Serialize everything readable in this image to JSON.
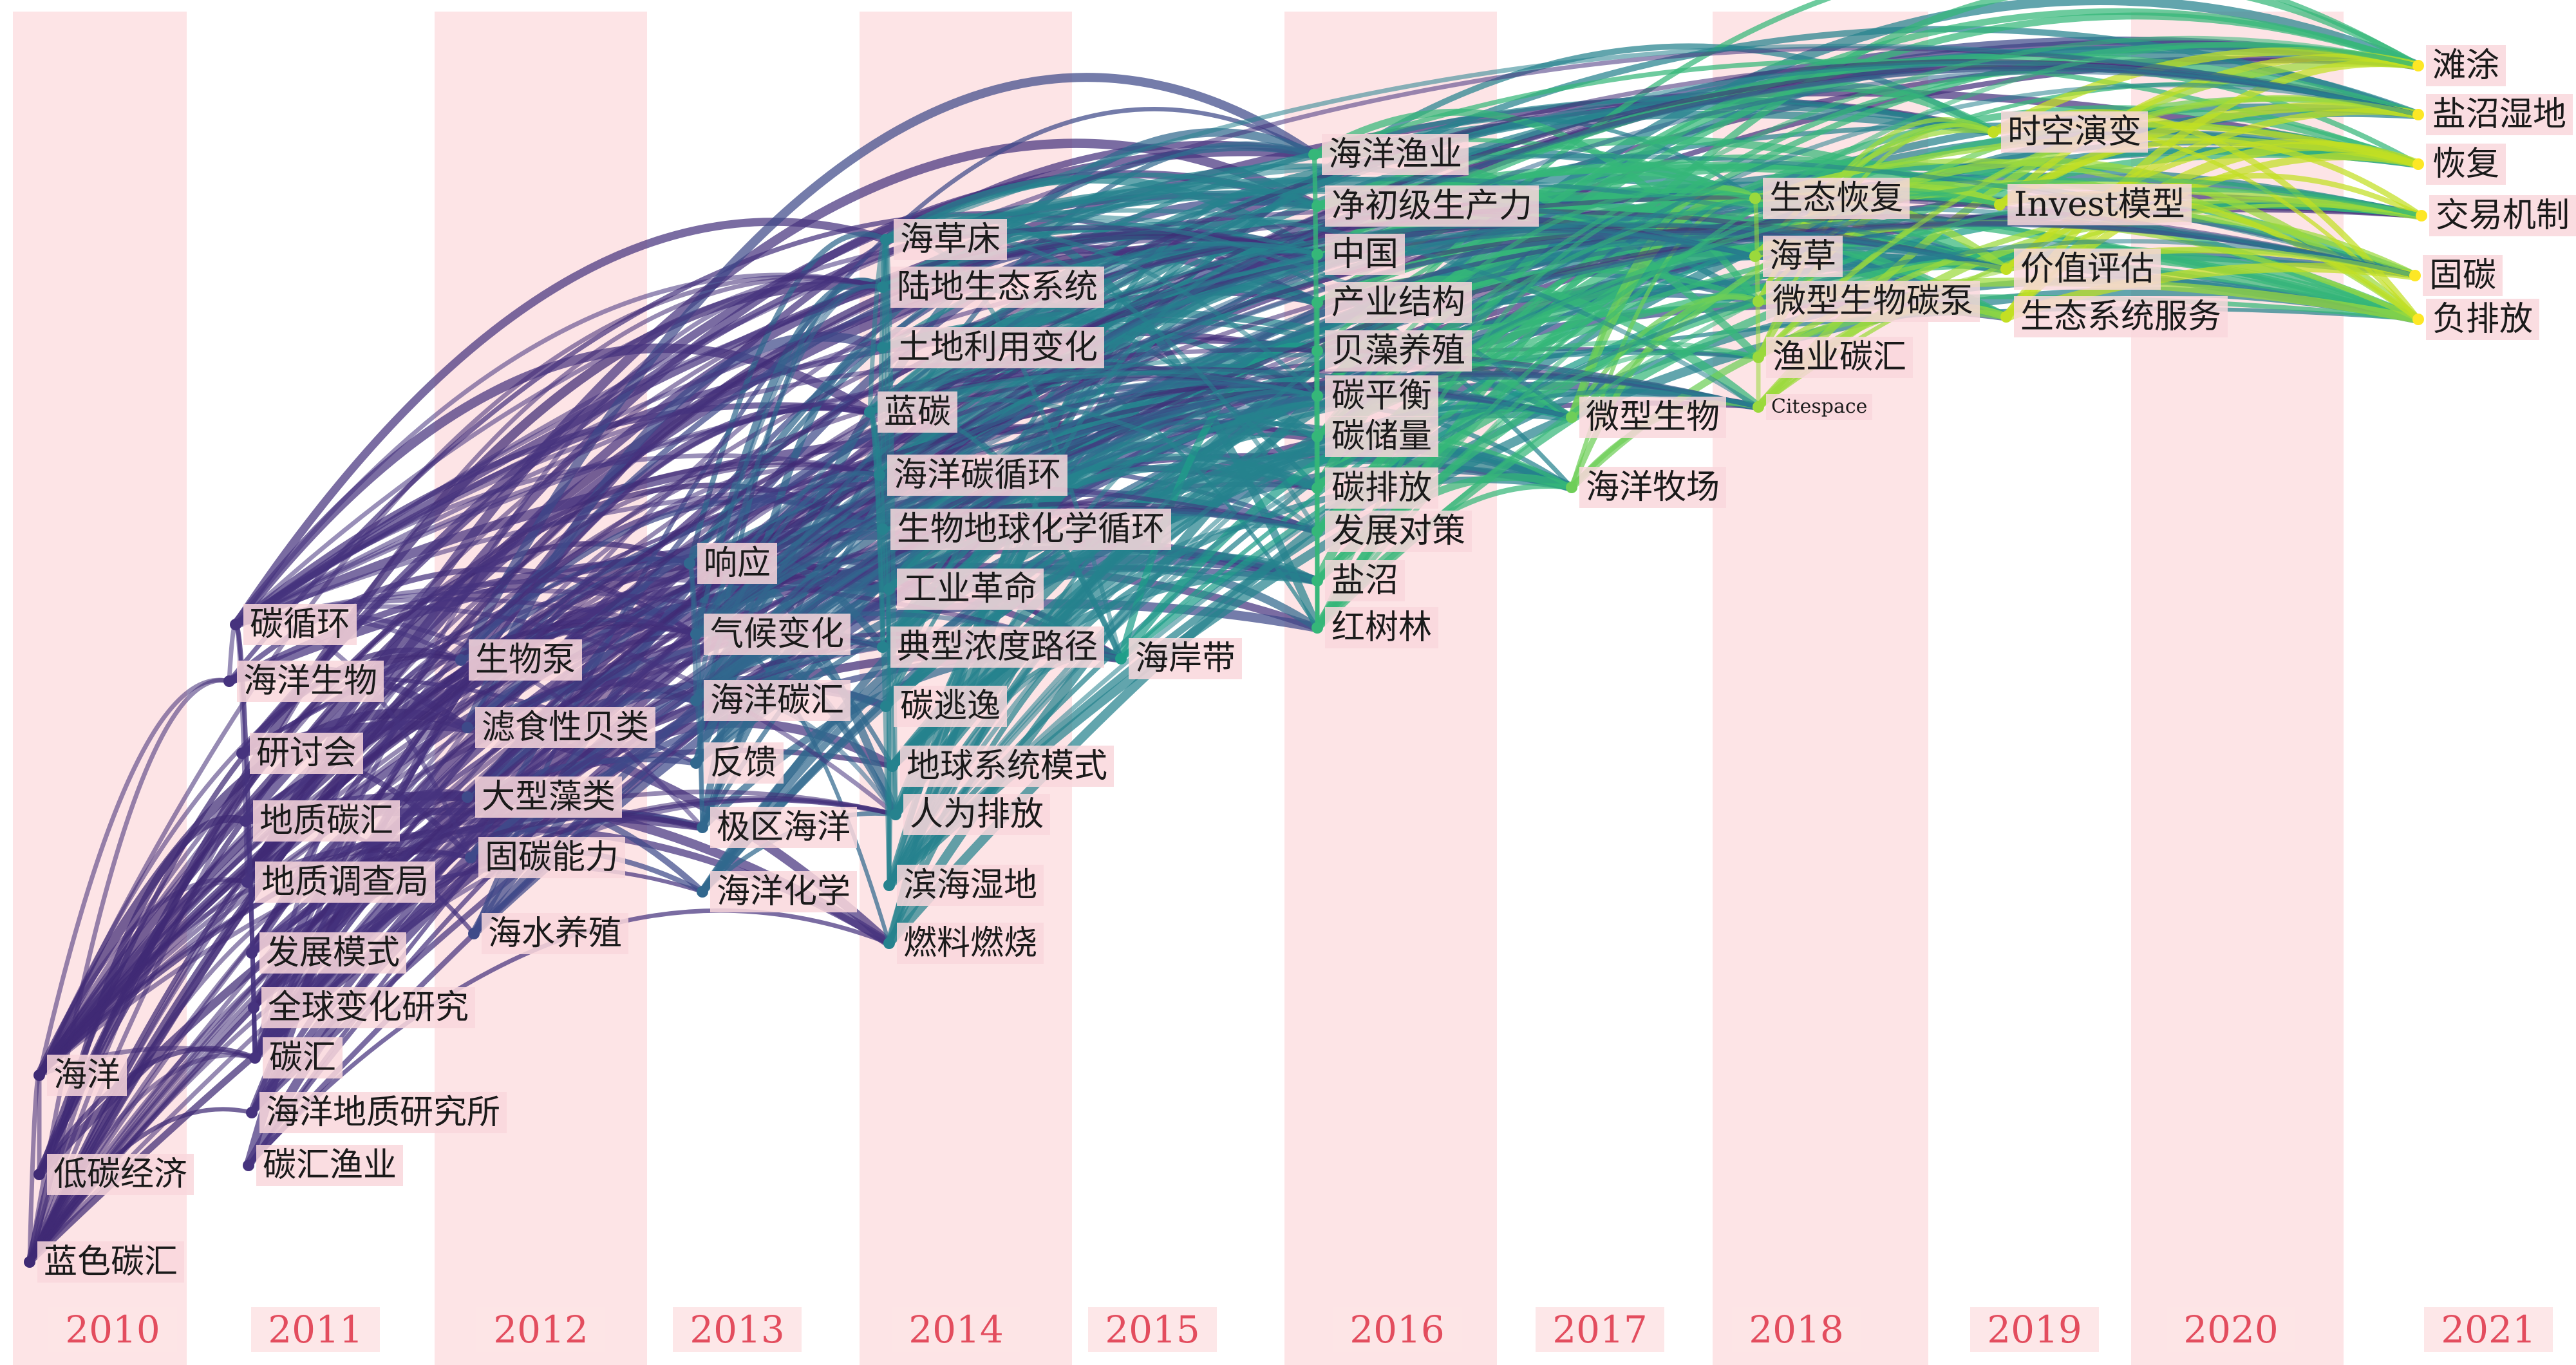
{
  "years": [
    "2010",
    "2011",
    "2012",
    "2013",
    "2014",
    "2015",
    "2016",
    "2017",
    "2018",
    "2019",
    "2020",
    "2021"
  ],
  "highlighted_years": [
    "2010",
    "2012",
    "2014",
    "2016",
    "2018",
    "2020"
  ],
  "colors": {
    "band": "#fde4e6",
    "year_label": "#e34d5e",
    "label_bg": "#f9d7dc"
  },
  "year_colors": [
    "#3f2a74",
    "#46337e",
    "#3e4a89",
    "#31688e",
    "#26828e",
    "#1f9e89",
    "#35b779",
    "#6ece58",
    "#9bd93c",
    "#c2df23",
    "#e1dd37",
    "#fde725"
  ],
  "keywords": {
    "2010": [
      "海洋",
      "低碳经济",
      "蓝色碳汇"
    ],
    "2011": [
      "碳循环",
      "海洋生物",
      "研讨会",
      "地质碳汇",
      "地质调查局",
      "发展模式",
      "全球变化研究",
      "碳汇",
      "海洋地质研究所",
      "碳汇渔业"
    ],
    "2012": [
      "生物泵",
      "滤食性贝类",
      "大型藻类",
      "固碳能力",
      "海水养殖"
    ],
    "2013": [
      "响应",
      "气候变化",
      "海洋碳汇",
      "反馈",
      "极区海洋",
      "海洋化学"
    ],
    "2014": [
      "海草床",
      "陆地生态系统",
      "土地利用变化",
      "蓝碳",
      "海洋碳循环",
      "生物地球化学循环",
      "工业革命",
      "典型浓度路径",
      "碳逃逸",
      "地球系统模式",
      "人为排放",
      "滨海湿地",
      "燃料燃烧"
    ],
    "2015": [
      "海岸带"
    ],
    "2016": [
      "海洋渔业",
      "净初级生产力",
      "中国",
      "产业结构",
      "贝藻养殖",
      "碳平衡",
      "碳储量",
      "碳排放",
      "发展对策",
      "盐沼",
      "红树林"
    ],
    "2017": [
      "微型生物",
      "海洋牧场"
    ],
    "2018": [
      "生态恢复",
      "海草",
      "微型生物碳泵",
      "渔业碳汇",
      "Citespace"
    ],
    "2019": [
      "时空演变",
      "Invest模型",
      "价值评估",
      "生态系统服务"
    ],
    "2020": [],
    "2021": [
      "滩涂",
      "盐沼湿地",
      "恢复",
      "交易机制",
      "固碳",
      "负排放"
    ]
  }
}
